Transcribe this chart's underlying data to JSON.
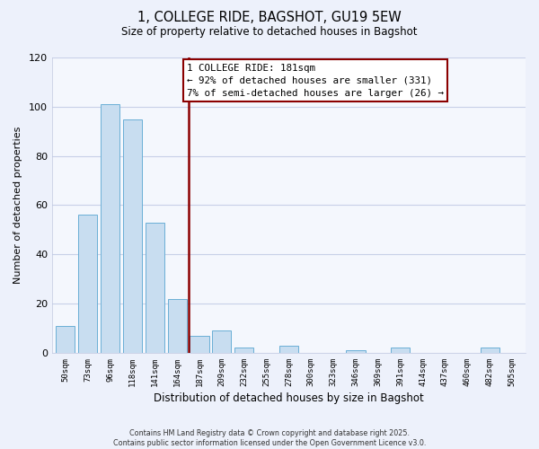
{
  "title": "1, COLLEGE RIDE, BAGSHOT, GU19 5EW",
  "subtitle": "Size of property relative to detached houses in Bagshot",
  "xlabel": "Distribution of detached houses by size in Bagshot",
  "ylabel": "Number of detached properties",
  "bar_labels": [
    "50sqm",
    "73sqm",
    "96sqm",
    "118sqm",
    "141sqm",
    "164sqm",
    "187sqm",
    "209sqm",
    "232sqm",
    "255sqm",
    "278sqm",
    "300sqm",
    "323sqm",
    "346sqm",
    "369sqm",
    "391sqm",
    "414sqm",
    "437sqm",
    "460sqm",
    "482sqm",
    "505sqm"
  ],
  "bar_values": [
    11,
    56,
    101,
    95,
    53,
    22,
    7,
    9,
    2,
    0,
    3,
    0,
    0,
    1,
    0,
    2,
    0,
    0,
    0,
    2,
    0
  ],
  "bar_color": "#c8ddf0",
  "bar_edge_color": "#6aafd6",
  "ylim": [
    0,
    120
  ],
  "yticks": [
    0,
    20,
    40,
    60,
    80,
    100,
    120
  ],
  "vline_color": "#8b0000",
  "annotation_title": "1 COLLEGE RIDE: 181sqm",
  "annotation_line1": "← 92% of detached houses are smaller (331)",
  "annotation_line2": "7% of semi-detached houses are larger (26) →",
  "annotation_box_color": "white",
  "annotation_box_edge": "#8b0000",
  "footer_line1": "Contains HM Land Registry data © Crown copyright and database right 2025.",
  "footer_line2": "Contains public sector information licensed under the Open Government Licence v3.0.",
  "background_color": "#edf1fb",
  "plot_bg_color": "#f4f7fd",
  "grid_color": "#c8d0e8"
}
